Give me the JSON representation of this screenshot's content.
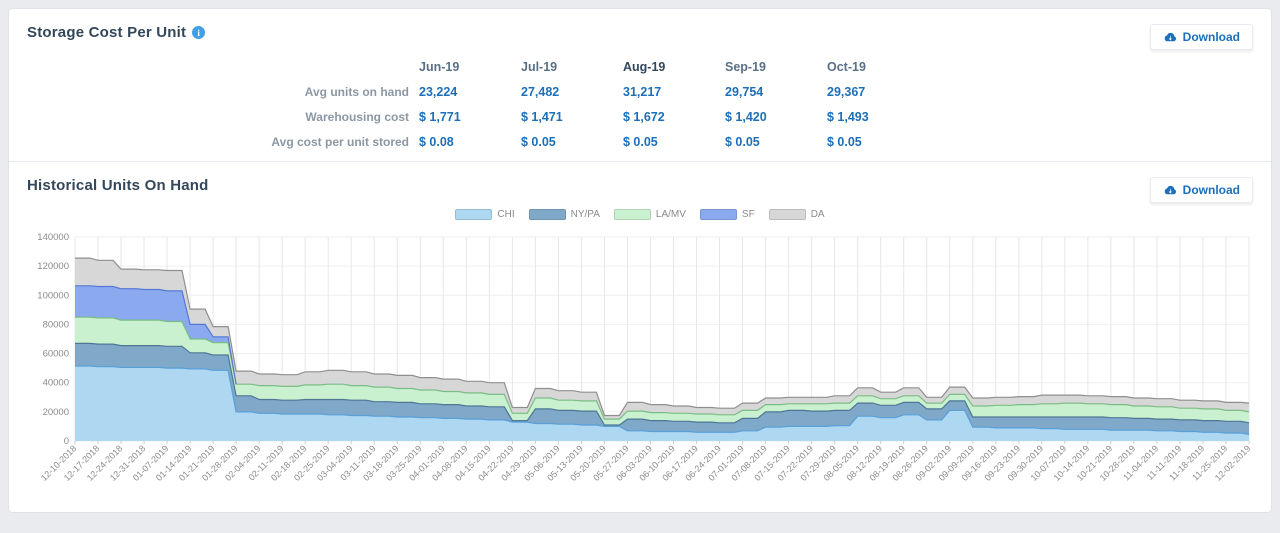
{
  "page": {
    "background": "#e9ebee",
    "card_background": "#ffffff"
  },
  "storage_section": {
    "title": "Storage Cost Per Unit",
    "info_icon": "i",
    "download_label": "Download",
    "table": {
      "columns": [
        "Jun-19",
        "Jul-19",
        "Aug-19",
        "Sep-19",
        "Oct-19"
      ],
      "highlighted_column": "Aug-19",
      "rows": [
        {
          "label": "Avg units on hand",
          "values": [
            "23,224",
            "27,482",
            "31,217",
            "29,754",
            "29,367"
          ]
        },
        {
          "label": "Warehousing cost",
          "values": [
            "$ 1,771",
            "$ 1,471",
            "$ 1,672",
            "$ 1,420",
            "$ 1,493"
          ]
        },
        {
          "label": "Avg cost per unit stored",
          "values": [
            "$ 0.08",
            "$ 0.05",
            "$ 0.05",
            "$ 0.05",
            "$ 0.05"
          ]
        }
      ]
    }
  },
  "history_section": {
    "title": "Historical Units On Hand",
    "download_label": "Download",
    "chart_data": {
      "type": "area",
      "stacked": true,
      "title": "",
      "xlabel": "",
      "ylabel": "",
      "ylim": [
        0,
        140000
      ],
      "yticks": [
        0,
        20000,
        40000,
        60000,
        80000,
        100000,
        120000,
        140000
      ],
      "grid": true,
      "legend_position": "top-center",
      "x": [
        "12-10-2018",
        "12-17-2018",
        "12-24-2018",
        "12-31-2018",
        "01-07-2019",
        "01-14-2019",
        "01-21-2019",
        "01-28-2019",
        "02-04-2019",
        "02-11-2019",
        "02-18-2019",
        "02-25-2019",
        "03-04-2019",
        "03-11-2019",
        "03-18-2019",
        "03-25-2019",
        "04-01-2019",
        "04-08-2019",
        "04-15-2019",
        "04-22-2019",
        "04-29-2019",
        "05-06-2019",
        "05-13-2019",
        "05-20-2019",
        "05-27-2019",
        "06-03-2019",
        "06-10-2019",
        "06-17-2019",
        "06-24-2019",
        "07-01-2019",
        "07-08-2019",
        "07-15-2019",
        "07-22-2019",
        "07-29-2019",
        "08-05-2019",
        "08-12-2019",
        "08-19-2019",
        "08-26-2019",
        "09-02-2019",
        "09-09-2019",
        "09-16-2019",
        "09-23-2019",
        "09-30-2019",
        "10-07-2019",
        "10-14-2019",
        "10-21-2019",
        "10-28-2019",
        "11-04-2019",
        "11-11-2019",
        "11-18-2019",
        "11-25-2019",
        "12-02-2019"
      ],
      "series": [
        {
          "name": "CHI",
          "fill": "#aed7f2",
          "stroke": "#58a0d8",
          "values": [
            51500,
            51000,
            50500,
            50500,
            50000,
            49500,
            48500,
            20000,
            19000,
            18500,
            18500,
            18000,
            17500,
            17000,
            16500,
            16000,
            15500,
            15000,
            14500,
            13000,
            12000,
            11500,
            11000,
            10000,
            7000,
            6500,
            6500,
            6000,
            6000,
            7000,
            9500,
            10000,
            10000,
            10500,
            17000,
            16000,
            18000,
            14500,
            21000,
            9500,
            9000,
            9000,
            8500,
            8000,
            8000,
            7500,
            7500,
            7000,
            6500,
            6000,
            5500,
            4500
          ]
        },
        {
          "name": "NY/PA",
          "fill": "#7fa8c9",
          "stroke": "#4f7795",
          "values": [
            15500,
            15500,
            15000,
            15000,
            15000,
            11000,
            10500,
            11000,
            9500,
            9500,
            10000,
            10500,
            10500,
            10000,
            10000,
            9500,
            9500,
            9000,
            9000,
            1000,
            10000,
            9500,
            9500,
            1000,
            8000,
            7500,
            7000,
            7000,
            6500,
            8500,
            10500,
            11000,
            10500,
            10500,
            9000,
            8500,
            8500,
            7500,
            6500,
            7000,
            7500,
            7500,
            8000,
            8500,
            8500,
            8500,
            8000,
            8000,
            8000,
            8000,
            8000,
            8000
          ]
        },
        {
          "name": "LA/MV",
          "fill": "#c9f0cf",
          "stroke": "#7bbd86",
          "values": [
            18000,
            18000,
            17500,
            17500,
            17000,
            9500,
            8500,
            8000,
            9500,
            9500,
            10000,
            10500,
            10000,
            10000,
            9500,
            9500,
            9000,
            9000,
            8500,
            5000,
            7500,
            7000,
            7000,
            4000,
            5500,
            5500,
            5500,
            5500,
            5500,
            5500,
            5000,
            4500,
            5000,
            5000,
            5000,
            4500,
            4500,
            4000,
            4500,
            7500,
            8000,
            8500,
            9000,
            9500,
            9000,
            9000,
            8500,
            8500,
            8000,
            8000,
            7500,
            7500
          ]
        },
        {
          "name": "SF",
          "fill": "#8aa9ee",
          "stroke": "#5578d6",
          "values": [
            21500,
            21500,
            21500,
            21000,
            21000,
            10000,
            4000,
            0,
            0,
            0,
            0,
            0,
            0,
            0,
            0,
            0,
            0,
            0,
            0,
            0,
            0,
            0,
            0,
            0,
            0,
            0,
            0,
            0,
            0,
            0,
            0,
            0,
            0,
            0,
            0,
            0,
            0,
            0,
            0,
            0,
            0,
            0,
            0,
            0,
            0,
            0,
            0,
            0,
            0,
            0,
            0,
            0
          ]
        },
        {
          "name": "DA",
          "fill": "#d7d7d7",
          "stroke": "#8f8f8f",
          "values": [
            19000,
            18000,
            13500,
            13500,
            14000,
            10500,
            7000,
            9000,
            8000,
            8000,
            9000,
            9500,
            9500,
            9000,
            9000,
            8500,
            8500,
            8000,
            8000,
            4000,
            6500,
            6500,
            6000,
            2500,
            6000,
            5500,
            5000,
            4500,
            4500,
            5000,
            4500,
            4500,
            4500,
            5000,
            5500,
            4500,
            5500,
            4000,
            5000,
            5500,
            5500,
            5500,
            6000,
            5500,
            5500,
            5500,
            5500,
            5500,
            5500,
            5500,
            5500,
            6000
          ]
        }
      ]
    }
  },
  "colors": {
    "accent_blue": "#1d6fba",
    "title_navy": "#33475b",
    "grid_line": "#e7e7e7",
    "axis_text": "#8a8a8a",
    "info_icon_blue": "#41a0e3"
  }
}
